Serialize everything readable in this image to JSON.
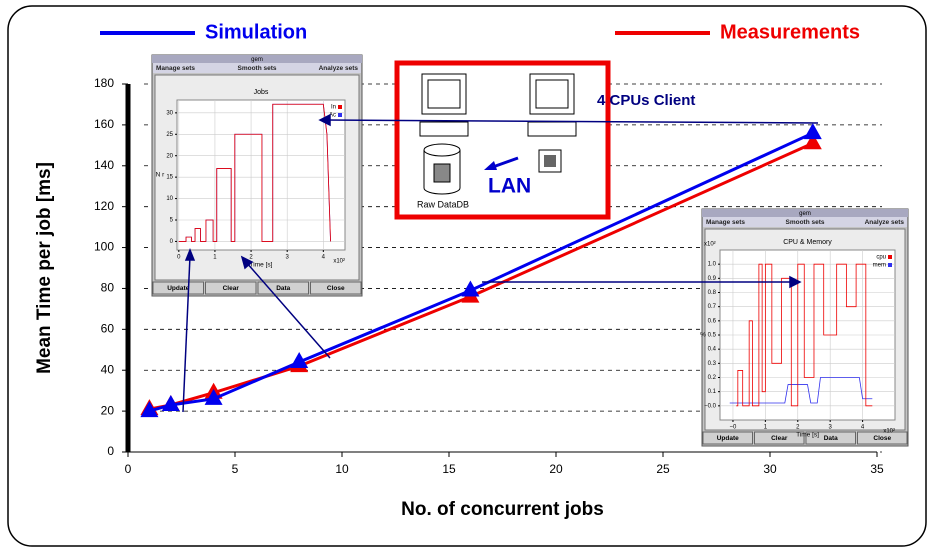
{
  "chart_data": [
    {
      "type": "line",
      "x_label": "No. of concurrent jobs",
      "y_label": "Mean Time per job [ms]",
      "x": [
        1,
        2,
        4,
        8,
        16,
        32
      ],
      "series": [
        {
          "name": "Simulation",
          "color": "#0000ee",
          "values": [
            20,
            23,
            26,
            44,
            79,
            156
          ]
        },
        {
          "name": "Measurements",
          "color": "#ee0000",
          "values": [
            21,
            23,
            29,
            42,
            76,
            151
          ]
        }
      ],
      "xlim": [
        0,
        35
      ],
      "xticks": [
        0,
        5,
        10,
        15,
        20,
        25,
        30,
        35
      ],
      "ylim": [
        0,
        180
      ],
      "yticks": [
        0,
        20,
        40,
        60,
        80,
        100,
        120,
        140,
        160,
        180
      ],
      "grid": true,
      "marker": "triangle",
      "annotations": [
        "4 CPUs Client",
        "LAN",
        "Raw DataDB"
      ]
    },
    {
      "type": "line",
      "window_title": "gem",
      "menu": [
        "Manage sets",
        "Smooth sets",
        "Analyze sets"
      ],
      "buttons": [
        "Update",
        "Clear",
        "Data",
        "Close"
      ],
      "title": "Jobs",
      "x_label": "Time [s]",
      "x_scale_label": "x10²",
      "y_label": "N r",
      "x": [
        0,
        0.2,
        0.2,
        0.35,
        0.35,
        0.45,
        0.45,
        0.6,
        0.6,
        0.75,
        0.75,
        0.95,
        0.95,
        1.05,
        1.05,
        1.45,
        1.45,
        1.55,
        1.55,
        2.3,
        2.3,
        2.6,
        2.6,
        4.0,
        4.1,
        4.2
      ],
      "series": [
        {
          "name": "In",
          "color": "#ee0000",
          "values": [
            0,
            0,
            1,
            1,
            0,
            0,
            3,
            3,
            0,
            0,
            5,
            5,
            0,
            0,
            17,
            17,
            0,
            0,
            25,
            25,
            0,
            0,
            32,
            32,
            25,
            0
          ]
        },
        {
          "name": "Ac",
          "color": "#3030ee",
          "values": [
            0,
            0,
            1,
            1,
            0,
            0,
            3,
            3,
            0,
            0,
            5,
            5,
            0,
            0,
            17,
            17,
            0,
            0,
            25,
            25,
            0,
            0,
            32,
            32,
            25,
            0
          ]
        }
      ],
      "xlim": [
        -0.05,
        4.6
      ],
      "xticks": [
        0,
        1,
        2,
        3,
        4
      ],
      "ylim": [
        -2,
        33
      ],
      "yticks": [
        0,
        5,
        10,
        15,
        20,
        25,
        30
      ],
      "grid": true
    },
    {
      "type": "line",
      "window_title": "gem",
      "menu": [
        "Manage sets",
        "Smooth sets",
        "Analyze sets"
      ],
      "buttons": [
        "Update",
        "Clear",
        "Data",
        "Close"
      ],
      "title": "CPU & Memory",
      "x_label": "Time [s]",
      "x_scale_label": "x10²",
      "y_scale_label": "x10²",
      "y_label": "%",
      "series": [
        {
          "name": "cpu",
          "color": "#ee0000",
          "x": [
            0.1,
            0.15,
            0.15,
            0.3,
            0.3,
            0.5,
            0.5,
            0.6,
            0.6,
            0.8,
            0.8,
            0.9,
            0.9,
            1.0,
            1.0,
            1.2,
            1.2,
            1.5,
            1.5,
            1.8,
            1.8,
            2.0,
            2.0,
            2.2,
            2.2,
            2.5,
            2.5,
            2.8,
            2.8,
            3.2,
            3.2,
            3.5,
            3.5,
            3.8,
            3.8,
            4.1,
            4.1,
            4.3
          ],
          "values": [
            0,
            0,
            0.25,
            0.25,
            0,
            0,
            0.6,
            0.6,
            0,
            0,
            1,
            1,
            0.1,
            0.1,
            1,
            1,
            0.3,
            0.3,
            0.9,
            0.9,
            0,
            0,
            1,
            1,
            0.2,
            0.2,
            1,
            1,
            0.5,
            0.5,
            1,
            1,
            0.7,
            0.7,
            1,
            1,
            0,
            0
          ]
        },
        {
          "name": "mem",
          "color": "#3030ee",
          "x": [
            -0.1,
            1.6,
            1.7,
            2.3,
            2.4,
            2.6,
            2.7,
            3.9,
            4.0,
            4.3
          ],
          "values": [
            0.02,
            0.02,
            0.15,
            0.15,
            0.02,
            0.02,
            0.2,
            0.2,
            0.05,
            0.05
          ]
        }
      ],
      "xlim": [
        -0.4,
        5.0
      ],
      "xticks": [
        {
          "value": 0,
          "label": "−0"
        },
        1,
        2,
        3,
        4
      ],
      "ylim": [
        -0.1,
        1.1
      ],
      "yticks": [
        {
          "value": 0,
          "label": "−0.0"
        },
        0.1,
        0.2,
        0.3,
        0.4,
        0.5,
        0.6,
        0.7,
        0.8,
        0.9,
        {
          "value": 1,
          "label": "1.0"
        }
      ],
      "grid": true
    }
  ]
}
